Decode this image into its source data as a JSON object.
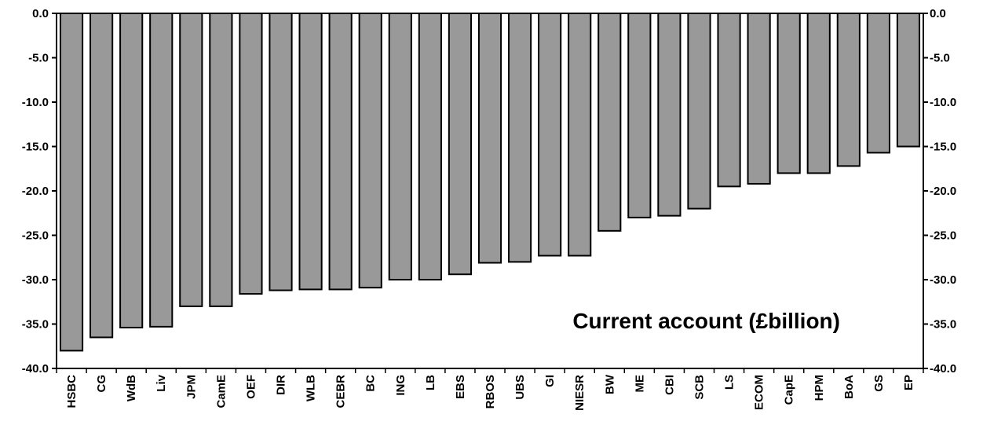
{
  "chart_data": {
    "type": "bar",
    "title": "Current account (£billion)",
    "xlabel": "",
    "ylabel": "",
    "ylim": [
      -40.0,
      0.0
    ],
    "yticks": [
      "0.0",
      "-5.0",
      "-10.0",
      "-15.0",
      "-20.0",
      "-25.0",
      "-30.0",
      "-35.0",
      "-40.0"
    ],
    "ytick_values": [
      0,
      -5,
      -10,
      -15,
      -20,
      -25,
      -30,
      -35,
      -40
    ],
    "grid": false,
    "legend": "none",
    "bar_color": "#999999",
    "categories": [
      "HSBC",
      "CG",
      "WdB",
      "Liv",
      "JPM",
      "CamE",
      "OEF",
      "DIR",
      "WLB",
      "CEBR",
      "BC",
      "ING",
      "LB",
      "EBS",
      "RBOS",
      "UBS",
      "GI",
      "NIESR",
      "BW",
      "ME",
      "CBI",
      "SCB",
      "LS",
      "ECOM",
      "CapE",
      "HPM",
      "BoA",
      "GS",
      "EP"
    ],
    "values": [
      -38.0,
      -36.5,
      -35.4,
      -35.3,
      -33.0,
      -33.0,
      -31.6,
      -31.2,
      -31.1,
      -31.1,
      -30.9,
      -30.0,
      -30.0,
      -29.4,
      -28.1,
      -28.0,
      -27.3,
      -27.3,
      -24.5,
      -23.0,
      -22.8,
      -22.0,
      -19.5,
      -19.2,
      -18.0,
      -18.0,
      -17.2,
      -15.7,
      -15.0
    ]
  }
}
